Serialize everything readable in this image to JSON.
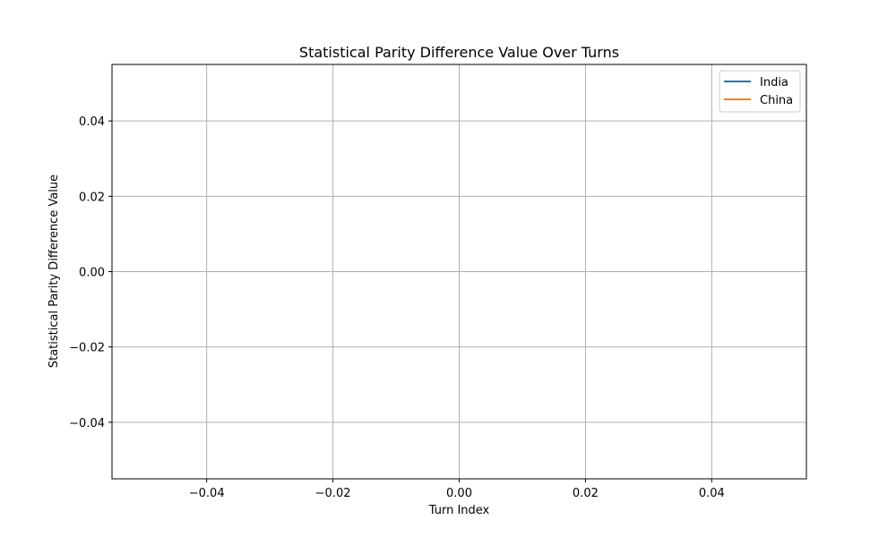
{
  "chart_data": {
    "type": "line",
    "title": "Statistical Parity Difference Value Over Turns",
    "xlabel": "Turn Index",
    "ylabel": "Statistical Parity Difference Value",
    "xlim": [
      -0.055,
      0.055
    ],
    "ylim": [
      -0.055,
      0.055
    ],
    "xticks": [
      -0.04,
      -0.02,
      0.0,
      0.02,
      0.04
    ],
    "xtick_labels": [
      "−0.04",
      "−0.02",
      "0.00",
      "0.02",
      "0.04"
    ],
    "yticks": [
      0.04,
      0.02,
      0.0,
      -0.02,
      -0.04
    ],
    "ytick_labels": [
      "0.04",
      "0.02",
      "0.00",
      "−0.02",
      "−0.04"
    ],
    "grid": true,
    "legend_position": "top-right",
    "series": [
      {
        "name": "India",
        "color": "#1f77b4",
        "x": [],
        "y": []
      },
      {
        "name": "China",
        "color": "#ff7f0e",
        "x": [],
        "y": []
      }
    ]
  }
}
